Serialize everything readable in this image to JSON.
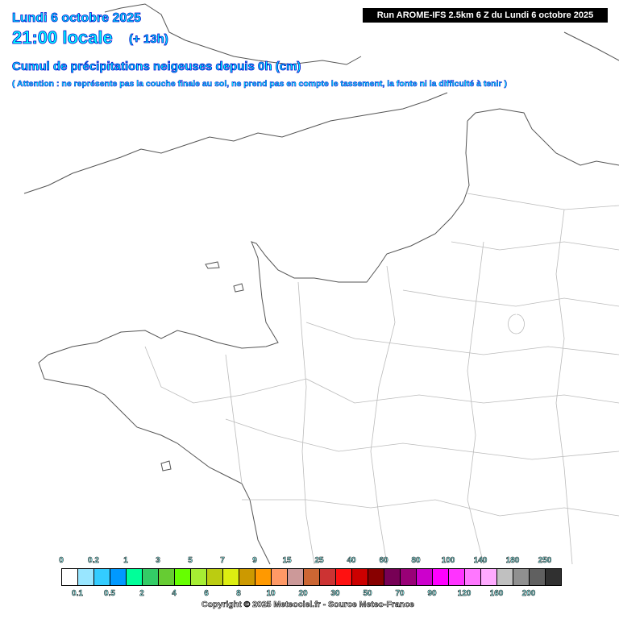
{
  "header": {
    "date": "Lundi 6 octobre 2025",
    "local_time": "21:00 locale",
    "lead_time": "(+ 13h)",
    "title": "Cumul de précipitations neigeuses depuis 0h (cm)",
    "warning": "( Attention : ne représente pas la couche finale au sol, ne prend pas en compte le tassement, la fonte ni la difficulté à tenir )",
    "run_info": "Run AROME-IFS 2.5km 6 Z du Lundi 6 octobre 2025"
  },
  "legend": {
    "colors": [
      "#ffffff",
      "#99e6ff",
      "#33ccff",
      "#0099ff",
      "#00ff99",
      "#33cc66",
      "#66cc33",
      "#66ff00",
      "#a6ee33",
      "#bbcc11",
      "#ddee11",
      "#cc9900",
      "#ff9900",
      "#ff9966",
      "#cc9999",
      "#cc6633",
      "#cc3333",
      "#ff1111",
      "#cc0000",
      "#880000",
      "#770055",
      "#990077",
      "#cc00cc",
      "#ff00ff",
      "#ff33ff",
      "#ff77ff",
      "#ffaaff",
      "#c0c0c0",
      "#909090",
      "#606060",
      "#303030"
    ],
    "top_labels": [
      "0",
      "0.2",
      "1",
      "3",
      "5",
      "7",
      "9",
      "15",
      "25",
      "40",
      "60",
      "80",
      "100",
      "140",
      "180",
      "250"
    ],
    "bottom_labels": [
      "0.1",
      "0.5",
      "2",
      "4",
      "6",
      "8",
      "10",
      "20",
      "30",
      "50",
      "70",
      "90",
      "120",
      "160",
      "200"
    ]
  },
  "footer": {
    "copyright": "Copyright © 2025 Meteociel.fr - Source Meteo-France"
  }
}
